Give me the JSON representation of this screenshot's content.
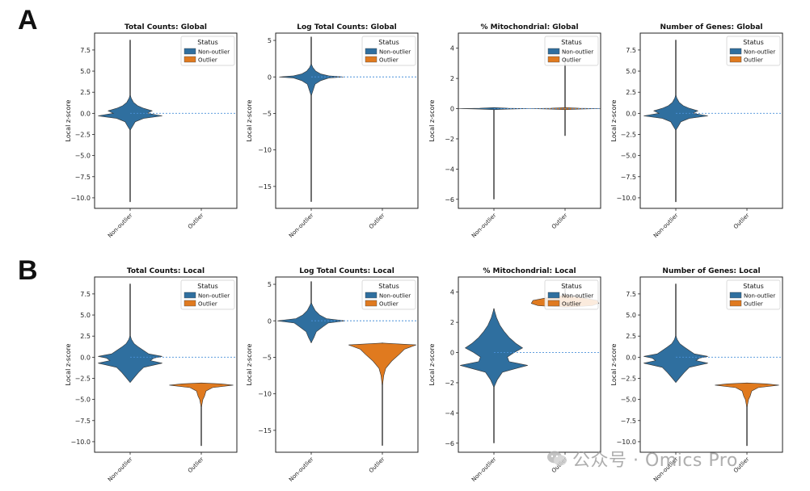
{
  "panel_labels": [
    "A",
    "B"
  ],
  "watermark": {
    "text": "公众号 · Omics Pro",
    "icon": "wechat-icon"
  },
  "colors": {
    "non_outlier": "#2f6f9f",
    "outlier": "#e07a1f",
    "axis": "#222222",
    "refline": "#4a90d9"
  },
  "chart_data": [
    {
      "type": "violin",
      "title": "Total Counts: Global",
      "ylabel": "Local z-score",
      "categories": [
        "Non-outlier",
        "Outlier"
      ],
      "ylim": [
        -11.25,
        9.5
      ],
      "yticks": [
        7.5,
        5.0,
        2.5,
        0.0,
        -2.5,
        -5.0,
        -7.5,
        -10.0
      ],
      "ytick_labels": [
        "7.5",
        "5.0",
        "2.5",
        "0.0",
        "−2.5",
        "−5.0",
        "−7.5",
        "−10.0"
      ],
      "reference_line": 0,
      "legend": {
        "title": "Status",
        "entries": [
          "Non-outlier",
          "Outlier"
        ],
        "position": "top-right"
      },
      "series": [
        {
          "name": "Non-outlier",
          "min": -10.5,
          "max": 8.7,
          "halfwidth": 0.95,
          "profile": [
            [
              -2.0,
              0
            ],
            [
              -1.5,
              0.08
            ],
            [
              -1.0,
              0.15
            ],
            [
              -0.6,
              0.4
            ],
            [
              -0.3,
              0.95
            ],
            [
              0.0,
              0.5
            ],
            [
              0.3,
              0.65
            ],
            [
              0.6,
              0.4
            ],
            [
              0.9,
              0.22
            ],
            [
              1.3,
              0.1
            ],
            [
              1.8,
              0.03
            ],
            [
              2.2,
              0
            ]
          ]
        },
        {
          "name": "Outlier",
          "empty": true
        }
      ]
    },
    {
      "type": "violin",
      "title": "Log Total Counts: Global",
      "ylabel": "Local z-score",
      "categories": [
        "Non-outlier",
        "Outlier"
      ],
      "ylim": [
        -18.0,
        6.0
      ],
      "yticks": [
        5,
        0,
        -5,
        -10,
        -15
      ],
      "ytick_labels": [
        "5",
        "0",
        "−5",
        "−10",
        "−15"
      ],
      "reference_line": 0,
      "legend": {
        "title": "Status",
        "entries": [
          "Non-outlier",
          "Outlier"
        ],
        "position": "top-right"
      },
      "series": [
        {
          "name": "Non-outlier",
          "min": -17.1,
          "max": 5.5,
          "halfwidth": 0.9,
          "profile": [
            [
              -2.6,
              0
            ],
            [
              -1.8,
              0.06
            ],
            [
              -1.0,
              0.12
            ],
            [
              -0.5,
              0.3
            ],
            [
              -0.15,
              0.55
            ],
            [
              0.0,
              1.0
            ],
            [
              0.15,
              0.55
            ],
            [
              0.4,
              0.3
            ],
            [
              0.8,
              0.14
            ],
            [
              1.3,
              0.05
            ],
            [
              1.8,
              0
            ]
          ]
        },
        {
          "name": "Outlier",
          "empty": true
        }
      ]
    },
    {
      "type": "violin",
      "title": "% Mitochondrial: Global",
      "ylabel": "Local z-score",
      "categories": [
        "Non-outlier",
        "Outlier"
      ],
      "ylim": [
        -6.6,
        5.0
      ],
      "yticks": [
        4,
        2,
        0,
        -2,
        -4,
        -6
      ],
      "ytick_labels": [
        "4",
        "2",
        "0",
        "−2",
        "−4",
        "−6"
      ],
      "reference_line": 0,
      "legend": {
        "title": "Status",
        "entries": [
          "Non-outlier",
          "Outlier"
        ],
        "position": "top-right"
      },
      "series": [
        {
          "name": "Non-outlier",
          "min": -6.0,
          "max": 0.05,
          "halfwidth": 1.0,
          "profile": [
            [
              -0.07,
              0
            ],
            [
              -0.03,
              0.4
            ],
            [
              0.0,
              1.0
            ],
            [
              0.03,
              0.4
            ],
            [
              0.07,
              0
            ]
          ]
        },
        {
          "name": "Outlier",
          "min": -1.8,
          "max": 3.3,
          "halfwidth": 1.0,
          "profile": [
            [
              -0.07,
              0
            ],
            [
              -0.03,
              0.4
            ],
            [
              0.0,
              1.0
            ],
            [
              0.03,
              0.4
            ],
            [
              0.07,
              0
            ]
          ]
        }
      ]
    },
    {
      "type": "violin",
      "title": "Number of Genes: Global",
      "ylabel": "Local z-score",
      "categories": [
        "Non-outlier",
        "Outlier"
      ],
      "ylim": [
        -11.25,
        9.5
      ],
      "yticks": [
        7.5,
        5.0,
        2.5,
        0.0,
        -2.5,
        -5.0,
        -7.5,
        -10.0
      ],
      "ytick_labels": [
        "7.5",
        "5.0",
        "2.5",
        "0.0",
        "−2.5",
        "−5.0",
        "−7.5",
        "−10.0"
      ],
      "reference_line": 0,
      "legend": {
        "title": "Status",
        "entries": [
          "Non-outlier",
          "Outlier"
        ],
        "position": "top-right"
      },
      "series": [
        {
          "name": "Non-outlier",
          "min": -10.5,
          "max": 8.7,
          "halfwidth": 0.95,
          "profile": [
            [
              -2.0,
              0
            ],
            [
              -1.5,
              0.08
            ],
            [
              -1.0,
              0.15
            ],
            [
              -0.6,
              0.4
            ],
            [
              -0.3,
              0.95
            ],
            [
              0.0,
              0.5
            ],
            [
              0.3,
              0.65
            ],
            [
              0.6,
              0.4
            ],
            [
              0.9,
              0.22
            ],
            [
              1.3,
              0.1
            ],
            [
              1.8,
              0.03
            ],
            [
              2.2,
              0
            ]
          ]
        },
        {
          "name": "Outlier",
          "empty": true
        }
      ]
    },
    {
      "type": "violin",
      "title": "Total Counts: Local",
      "ylabel": "Local z-score",
      "categories": [
        "Non-outlier",
        "Outlier"
      ],
      "ylim": [
        -11.25,
        9.5
      ],
      "yticks": [
        7.5,
        5.0,
        2.5,
        0.0,
        -2.5,
        -5.0,
        -7.5,
        -10.0
      ],
      "ytick_labels": [
        "7.5",
        "5.0",
        "2.5",
        "0.0",
        "−2.5",
        "−5.0",
        "−7.5",
        "−10.0"
      ],
      "reference_line": 0,
      "legend": {
        "title": "Status",
        "entries": [
          "Non-outlier",
          "Outlier"
        ],
        "position": "top-right"
      },
      "series": [
        {
          "name": "Non-outlier",
          "min": -2.9,
          "max": 8.7,
          "halfwidth": 0.95,
          "profile": [
            [
              -3.0,
              0
            ],
            [
              -2.5,
              0.1
            ],
            [
              -1.8,
              0.25
            ],
            [
              -1.2,
              0.4
            ],
            [
              -0.7,
              0.95
            ],
            [
              -0.4,
              0.6
            ],
            [
              -0.1,
              0.7
            ],
            [
              0.1,
              0.95
            ],
            [
              0.4,
              0.55
            ],
            [
              0.8,
              0.4
            ],
            [
              1.2,
              0.25
            ],
            [
              1.6,
              0.12
            ],
            [
              2.1,
              0.04
            ],
            [
              2.6,
              0
            ]
          ]
        },
        {
          "name": "Outlier",
          "min": -10.5,
          "max": -3.1,
          "halfwidth": 0.9,
          "profile": [
            [
              -6.0,
              0
            ],
            [
              -5.0,
              0.05
            ],
            [
              -4.6,
              0.1
            ],
            [
              -4.0,
              0.15
            ],
            [
              -3.6,
              0.35
            ],
            [
              -3.3,
              1.0
            ],
            [
              -3.15,
              0.6
            ],
            [
              -3.05,
              0
            ]
          ]
        }
      ]
    },
    {
      "type": "violin",
      "title": "Log Total Counts: Local",
      "ylabel": "Local z-score",
      "categories": [
        "Non-outlier",
        "Outlier"
      ],
      "ylim": [
        -18.0,
        6.0
      ],
      "yticks": [
        5,
        0,
        -5,
        -10,
        -15
      ],
      "ytick_labels": [
        "5",
        "0",
        "−5",
        "−10",
        "−15"
      ],
      "reference_line": 0,
      "legend": {
        "title": "Status",
        "entries": [
          "Non-outlier",
          "Outlier"
        ],
        "position": "top-right"
      },
      "series": [
        {
          "name": "Non-outlier",
          "min": -3.0,
          "max": 5.4,
          "halfwidth": 0.95,
          "profile": [
            [
              -3.0,
              0
            ],
            [
              -2.3,
              0.08
            ],
            [
              -1.5,
              0.15
            ],
            [
              -0.8,
              0.35
            ],
            [
              -0.3,
              0.5
            ],
            [
              0.0,
              1.0
            ],
            [
              0.3,
              0.45
            ],
            [
              0.8,
              0.25
            ],
            [
              1.4,
              0.12
            ],
            [
              2.0,
              0.05
            ],
            [
              2.5,
              0
            ]
          ]
        },
        {
          "name": "Outlier",
          "min": -17.1,
          "max": -3.0,
          "halfwidth": 0.95,
          "profile": [
            [
              -9.0,
              0
            ],
            [
              -7.5,
              0.04
            ],
            [
              -6.5,
              0.1
            ],
            [
              -5.5,
              0.28
            ],
            [
              -4.6,
              0.5
            ],
            [
              -3.9,
              0.65
            ],
            [
              -3.3,
              1.0
            ],
            [
              -3.05,
              0
            ]
          ]
        }
      ]
    },
    {
      "type": "violin",
      "title": "% Mitochondrial: Local",
      "ylabel": "Local z-score",
      "categories": [
        "Non-outlier",
        "Outlier"
      ],
      "ylim": [
        -6.6,
        5.0
      ],
      "yticks": [
        4,
        2,
        0,
        -2,
        -4,
        -6
      ],
      "ytick_labels": [
        "4",
        "2",
        "0",
        "−2",
        "−4",
        "−6"
      ],
      "reference_line": 0,
      "legend": {
        "title": "Status",
        "entries": [
          "Non-outlier",
          "Outlier"
        ],
        "position": "top-right"
      },
      "series": [
        {
          "name": "Non-outlier",
          "min": -6.0,
          "max": 2.9,
          "halfwidth": 0.95,
          "profile": [
            [
              -2.3,
              0
            ],
            [
              -1.8,
              0.1
            ],
            [
              -1.3,
              0.25
            ],
            [
              -0.85,
              1.0
            ],
            [
              -0.6,
              0.45
            ],
            [
              -0.3,
              0.4
            ],
            [
              0.0,
              0.6
            ],
            [
              0.3,
              0.85
            ],
            [
              0.6,
              0.65
            ],
            [
              1.0,
              0.45
            ],
            [
              1.4,
              0.3
            ],
            [
              1.8,
              0.18
            ],
            [
              2.3,
              0.08
            ],
            [
              2.9,
              0
            ]
          ]
        },
        {
          "name": "Outlier",
          "min": 3.0,
          "max": 4.5,
          "halfwidth": 0.95,
          "profile": [
            [
              3.0,
              0
            ],
            [
              3.1,
              0.8
            ],
            [
              3.25,
              1.0
            ],
            [
              3.45,
              0.95
            ],
            [
              3.6,
              0.6
            ],
            [
              3.75,
              0.1
            ],
            [
              3.85,
              0
            ]
          ]
        }
      ]
    },
    {
      "type": "violin",
      "title": "Number of Genes: Local",
      "ylabel": "Local z-score",
      "categories": [
        "Non-outlier",
        "Outlier"
      ],
      "ylim": [
        -11.25,
        9.5
      ],
      "yticks": [
        7.5,
        5.0,
        2.5,
        0.0,
        -2.5,
        -5.0,
        -7.5,
        -10.0
      ],
      "ytick_labels": [
        "7.5",
        "5.0",
        "2.5",
        "0.0",
        "−2.5",
        "−5.0",
        "−7.5",
        "−10.0"
      ],
      "reference_line": 0,
      "legend": {
        "title": "Status",
        "entries": [
          "Non-outlier",
          "Outlier"
        ],
        "position": "top-right"
      },
      "series": [
        {
          "name": "Non-outlier",
          "min": -2.9,
          "max": 8.7,
          "halfwidth": 0.95,
          "profile": [
            [
              -3.0,
              0
            ],
            [
              -2.5,
              0.1
            ],
            [
              -1.8,
              0.25
            ],
            [
              -1.2,
              0.4
            ],
            [
              -0.7,
              0.95
            ],
            [
              -0.4,
              0.6
            ],
            [
              -0.1,
              0.7
            ],
            [
              0.1,
              0.95
            ],
            [
              0.4,
              0.55
            ],
            [
              0.8,
              0.4
            ],
            [
              1.2,
              0.25
            ],
            [
              1.6,
              0.12
            ],
            [
              2.1,
              0.04
            ],
            [
              2.6,
              0
            ]
          ]
        },
        {
          "name": "Outlier",
          "min": -10.5,
          "max": -3.1,
          "halfwidth": 0.9,
          "profile": [
            [
              -6.0,
              0
            ],
            [
              -5.0,
              0.05
            ],
            [
              -4.6,
              0.1
            ],
            [
              -4.0,
              0.15
            ],
            [
              -3.6,
              0.35
            ],
            [
              -3.3,
              1.0
            ],
            [
              -3.15,
              0.6
            ],
            [
              -3.05,
              0
            ]
          ]
        }
      ]
    }
  ]
}
